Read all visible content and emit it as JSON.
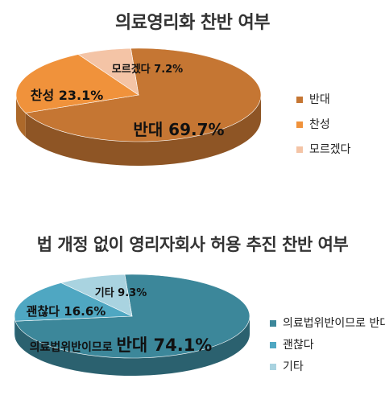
{
  "chart_data": [
    {
      "type": "pie",
      "title": "의료영리화 찬반 여부",
      "slices": [
        {
          "label": "반대",
          "value": 69.7,
          "color": "#C57633"
        },
        {
          "label": "찬성",
          "value": 23.1,
          "color": "#F0923B"
        },
        {
          "label": "모르겠다",
          "value": 7.2,
          "color": "#F4C4A6"
        }
      ],
      "slice_labels": [
        "반대  69.7%",
        "찬성 23.1%",
        "모르겠다 7.2%"
      ],
      "legend_entries": [
        "반대",
        "찬성",
        "모르겠다"
      ],
      "legend_position": "right"
    },
    {
      "type": "pie",
      "title": "법 개정 없이 영리자회사 허용 추진 찬반 여부",
      "slices": [
        {
          "label": "의료법위반이므로 반대",
          "value": 74.1,
          "color": "#3C879A"
        },
        {
          "label": "괜찮다",
          "value": 16.6,
          "color": "#4FA7C2"
        },
        {
          "label": "기타",
          "value": 9.3,
          "color": "#A9D3E0"
        }
      ],
      "slice_labels": [
        {
          "prefix": "의료법위반이므로 ",
          "main": "반대 74.1%"
        },
        "괜찮다 16.6%",
        "기타 9.3%"
      ],
      "legend_entries": [
        "의료법위반이므로 반대",
        "괜찮다",
        "기타"
      ],
      "legend_position": "right"
    }
  ]
}
